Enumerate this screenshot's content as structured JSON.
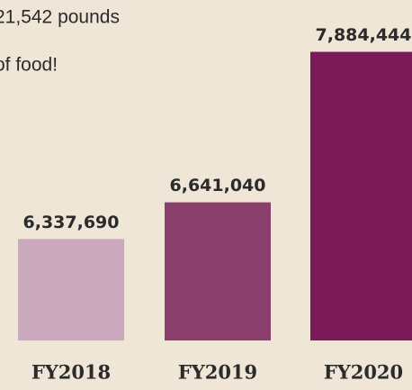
{
  "chart_data": {
    "type": "bar",
    "annotation_lines": [
      "21,542 pounds",
      "of food!"
    ],
    "categories": [
      "FY2018",
      "FY2019",
      "FY2020"
    ],
    "values": [
      6337690,
      6641040,
      7884444
    ],
    "value_labels": [
      "6,337,690",
      "6,641,040",
      "7,884,444"
    ],
    "colors": [
      "#c9a9bb",
      "#8b3f6c",
      "#7a1b58"
    ],
    "ylim": [
      5500000,
      8000000
    ]
  }
}
